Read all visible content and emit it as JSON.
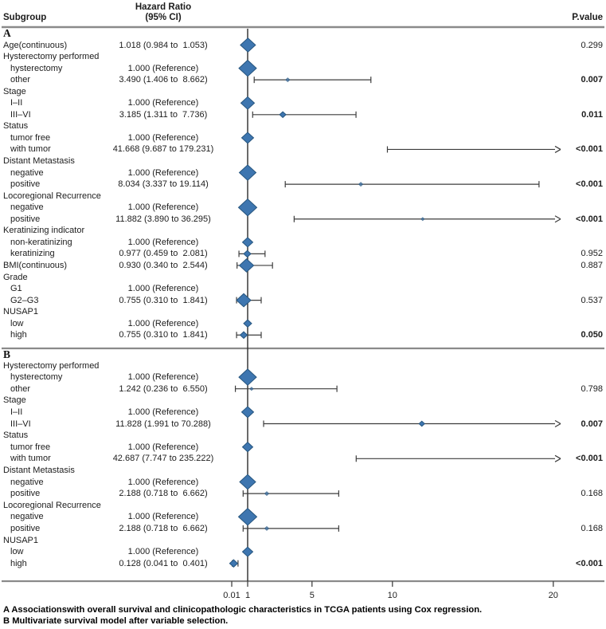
{
  "header": {
    "subgroup": "Subgroup",
    "hazard_ratio_line1": "Hazard Ratio",
    "hazard_ratio_line2": "(95% CI)",
    "pvalue": "P.value"
  },
  "captions": {
    "a": "A Associationswith overall survival and clinicopathologic characteristics in TCGA patients using Cox regression.",
    "b": "B Multivariate survival model after variable selection."
  },
  "colors": {
    "diamond_fill": "#3E76B0",
    "diamond_stroke": "#27567F",
    "whisker": "#3d3d3d",
    "reference_line": "#2b2b2b",
    "rule": "#8a8a8a"
  },
  "chart_data": {
    "type": "forest",
    "x_axis": {
      "scale": "linear",
      "reference_value": 1,
      "ticks": [
        {
          "value": 0.01,
          "label": "0.01"
        },
        {
          "value": 1,
          "label": "1"
        },
        {
          "value": 5,
          "label": "5"
        },
        {
          "value": 10,
          "label": "10"
        },
        {
          "value": 20,
          "label": "20"
        }
      ],
      "clip_max": 20.3
    },
    "sections": [
      {
        "label": "A",
        "rows": [
          {
            "label": "Age(continuous)",
            "indent": 0,
            "hr": "1.018 (0.984 to  1.053)",
            "est": 1.018,
            "lo": 0.984,
            "hi": 1.053,
            "p": "0.299",
            "bold": false,
            "size": 19
          },
          {
            "label": "Hysterectomy performed",
            "indent": 0
          },
          {
            "label": "hysterectomy",
            "indent": 1,
            "hr": "1.000 (Reference)",
            "est": 1.0,
            "size": 22
          },
          {
            "label": "other",
            "indent": 1,
            "hr": "3.490 (1.406 to  8.662)",
            "est": 3.49,
            "lo": 1.406,
            "hi": 8.662,
            "p": "0.007",
            "bold": true,
            "size": 5
          },
          {
            "label": "Stage",
            "indent": 0
          },
          {
            "label": "I–II",
            "indent": 1,
            "hr": "1.000 (Reference)",
            "est": 1.0,
            "size": 17
          },
          {
            "label": "III–VI",
            "indent": 1,
            "hr": "3.185 (1.311 to  7.736)",
            "est": 3.185,
            "lo": 1.311,
            "hi": 7.736,
            "p": "0.011",
            "bold": true,
            "size": 8
          },
          {
            "label": "Status",
            "indent": 0
          },
          {
            "label": "tumor free",
            "indent": 1,
            "hr": "1.000 (Reference)",
            "est": 1.0,
            "size": 15
          },
          {
            "label": "with tumor",
            "indent": 1,
            "hr": "41.668 (9.687 to 179.231)",
            "est": 41.668,
            "lo": 9.687,
            "hi": 179.231,
            "p": "<0.001",
            "bold": true,
            "size": 0,
            "arrow": true
          },
          {
            "label": "Distant Metastasis",
            "indent": 0
          },
          {
            "label": "negative",
            "indent": 1,
            "hr": "1.000 (Reference)",
            "est": 1.0,
            "size": 21
          },
          {
            "label": "positive",
            "indent": 1,
            "hr": "8.034 (3.337 to 19.114)",
            "est": 8.034,
            "lo": 3.337,
            "hi": 19.114,
            "p": "<0.001",
            "bold": true,
            "size": 5
          },
          {
            "label": "Locoregional Recurrence",
            "indent": 0
          },
          {
            "label": "negative",
            "indent": 1,
            "hr": "1.000 (Reference)",
            "est": 1.0,
            "size": 23
          },
          {
            "label": "positive",
            "indent": 1,
            "hr": "11.882 (3.890 to 36.295)",
            "est": 11.882,
            "lo": 3.89,
            "hi": 36.295,
            "p": "<0.001",
            "bold": true,
            "size": 4,
            "arrow": true
          },
          {
            "label": "Keratinizing indicator",
            "indent": 0
          },
          {
            "label": "non-keratinizing",
            "indent": 1,
            "hr": "1.000 (Reference)",
            "est": 1.0,
            "size": 13
          },
          {
            "label": "keratinizing",
            "indent": 1,
            "hr": "0.977 (0.459 to  2.081)",
            "est": 0.977,
            "lo": 0.459,
            "hi": 2.081,
            "p": "0.952",
            "bold": false,
            "size": 9
          },
          {
            "label": "BMI(continuous)",
            "indent": 0,
            "hr": "0.930 (0.340 to  2.544)",
            "est": 0.93,
            "lo": 0.34,
            "hi": 2.544,
            "p": "0.887",
            "bold": false,
            "size": 18
          },
          {
            "label": "Grade",
            "indent": 0
          },
          {
            "label": "G1",
            "indent": 1,
            "hr": "1.000 (Reference)",
            "est": 1.0,
            "size": 0
          },
          {
            "label": "G2–G3",
            "indent": 1,
            "hr": "0.755 (0.310 to  1.841)",
            "est": 0.755,
            "lo": 0.31,
            "hi": 1.841,
            "p": "0.537",
            "bold": false,
            "size": 18
          },
          {
            "label": "NUSAP1",
            "indent": 0
          },
          {
            "label": "low",
            "indent": 1,
            "hr": "1.000 (Reference)",
            "est": 1.0,
            "size": 10
          },
          {
            "label": "high",
            "indent": 1,
            "hr": "0.755 (0.310 to  1.841)",
            "est": 0.755,
            "lo": 0.31,
            "hi": 1.841,
            "p": "0.050",
            "bold": true,
            "size": 9
          }
        ]
      },
      {
        "label": "B",
        "rows": [
          {
            "label": "Hysterectomy performed",
            "indent": 0
          },
          {
            "label": "hysterectomy",
            "indent": 1,
            "hr": "1.000 (Reference)",
            "est": 1.0,
            "size": 22
          },
          {
            "label": "other",
            "indent": 1,
            "hr": "1.242 (0.236 to  6.550)",
            "est": 1.242,
            "lo": 0.236,
            "hi": 6.55,
            "p": "0.798",
            "bold": false,
            "size": 4
          },
          {
            "label": "Stage",
            "indent": 0
          },
          {
            "label": "I–II",
            "indent": 1,
            "hr": "1.000 (Reference)",
            "est": 1.0,
            "size": 15
          },
          {
            "label": "III–VI",
            "indent": 1,
            "hr": "11.828 (1.991 to 70.288)",
            "est": 11.828,
            "lo": 1.991,
            "hi": 70.288,
            "p": "0.007",
            "bold": true,
            "size": 7,
            "arrow": true
          },
          {
            "label": "Status",
            "indent": 0
          },
          {
            "label": "tumor free",
            "indent": 1,
            "hr": "1.000 (Reference)",
            "est": 1.0,
            "size": 13
          },
          {
            "label": "with tumor",
            "indent": 1,
            "hr": "42.687 (7.747 to 235.222)",
            "est": 42.687,
            "lo": 7.747,
            "hi": 235.222,
            "p": "<0.001",
            "bold": true,
            "size": 0,
            "arrow": true
          },
          {
            "label": "Distant Metastasis",
            "indent": 0
          },
          {
            "label": "negative",
            "indent": 1,
            "hr": "1.000 (Reference)",
            "est": 1.0,
            "size": 20
          },
          {
            "label": "positive",
            "indent": 1,
            "hr": "2.188 (0.718 to  6.662)",
            "est": 2.188,
            "lo": 0.718,
            "hi": 6.662,
            "p": "0.168",
            "bold": false,
            "size": 5
          },
          {
            "label": "Locoregional Recurrence",
            "indent": 0
          },
          {
            "label": "negative",
            "indent": 1,
            "hr": "1.000 (Reference)",
            "est": 1.0,
            "size": 23
          },
          {
            "label": "positive",
            "indent": 1,
            "hr": "2.188 (0.718 to  6.662)",
            "est": 2.188,
            "lo": 0.718,
            "hi": 6.662,
            "p": "0.168",
            "bold": false,
            "size": 5
          },
          {
            "label": "NUSAP1",
            "indent": 0
          },
          {
            "label": "low",
            "indent": 1,
            "hr": "1.000 (Reference)",
            "est": 1.0,
            "size": 13
          },
          {
            "label": "high",
            "indent": 1,
            "hr": "0.128 (0.041 to  0.401)",
            "est": 0.128,
            "lo": 0.041,
            "hi": 0.401,
            "p": "<0.001",
            "bold": true,
            "size": 10
          }
        ]
      }
    ]
  }
}
